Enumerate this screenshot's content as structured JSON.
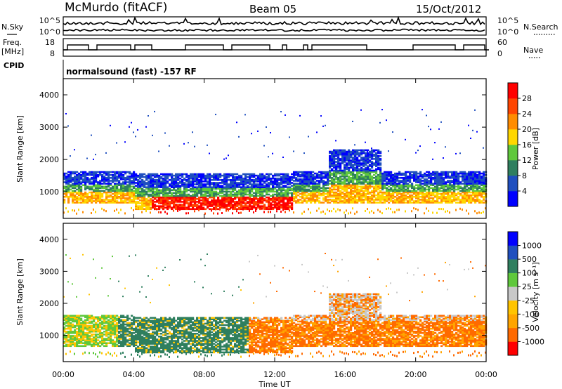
{
  "header": {
    "station": "McMurdo (fitACF)",
    "beam": "Beam 05",
    "date": "15/Oct/2012",
    "cpid_label": "CPID",
    "cpid_value": "normalsound (fast) -157 RF"
  },
  "noise_panel": {
    "left_label": "N.Sky",
    "right_label": "N.Search",
    "left_ticks": [
      "10^5",
      "10^0"
    ],
    "right_ticks": [
      "10^5",
      "10^0"
    ]
  },
  "freq_panel": {
    "left_label_1": "Freq.",
    "left_label_2": "[MHz]",
    "right_label": "Nave",
    "left_ticks": [
      "18",
      "8"
    ],
    "right_ticks": [
      "60",
      "0"
    ]
  },
  "colors": {
    "power": [
      "#0000ff",
      "#1f4fbf",
      "#2f7f5f",
      "#5fc83c",
      "#ffd700",
      "#ff8c00",
      "#ff4500",
      "#ff0000"
    ],
    "velocity": [
      "#ff0000",
      "#ff6a00",
      "#ffa500",
      "#ffc400",
      "#c8c8c8",
      "#5fc83c",
      "#2f7f5f",
      "#1f4fbf",
      "#0000ff"
    ]
  },
  "chart_data": [
    {
      "type": "heatmap",
      "name": "power",
      "ylabel": "Slant Range [km]",
      "yticks": [
        "4000",
        "3000",
        "2000",
        "1000"
      ],
      "ylim": [
        180,
        4500
      ],
      "xlim": [
        0,
        24
      ],
      "colorbar_label": "Power [dB]",
      "colorbar_ticks": [
        "28",
        "24",
        "20",
        "16",
        "12",
        "8",
        "4"
      ],
      "scatter_bands": [
        {
          "x": [
            0,
            4
          ],
          "range": [
            850,
            1550
          ],
          "level": "mid"
        },
        {
          "x": [
            4,
            13
          ],
          "range": [
            500,
            1600
          ],
          "level": "high"
        },
        {
          "x": [
            13,
            24
          ],
          "range": [
            650,
            1550
          ],
          "level": "mid"
        }
      ]
    },
    {
      "type": "heatmap",
      "name": "velocity",
      "ylabel": "Slant Range [km]",
      "yticks": [
        "4000",
        "3000",
        "2000",
        "1000"
      ],
      "ylim": [
        180,
        4500
      ],
      "xlim": [
        0,
        24
      ],
      "xlabel": "Time UT",
      "xticks": [
        "00:00",
        "04:00",
        "08:00",
        "12:00",
        "16:00",
        "20:00",
        "00:00"
      ],
      "colorbar_label": "Velocity [m s⁻¹]",
      "colorbar_ticks": [
        "1000",
        "500",
        "100",
        "25",
        "-25",
        "-100",
        "-500",
        "-1000"
      ]
    }
  ]
}
